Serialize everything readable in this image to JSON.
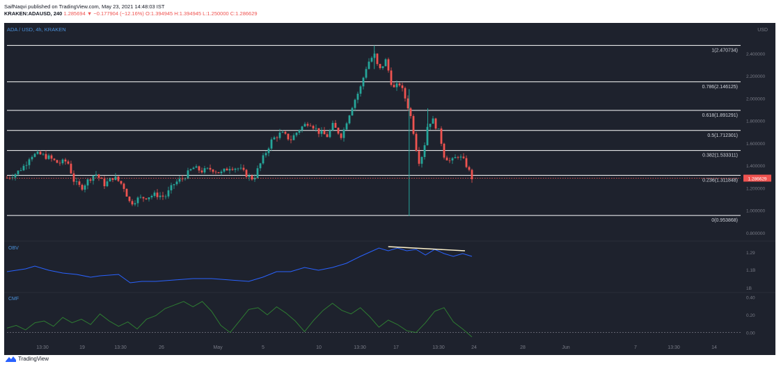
{
  "header": {
    "line1": "SaifNaqvi published on TradingView.com, May 23, 2021 14:48:03 IST",
    "symbol": "KRAKEN:ADAUSD, 240",
    "last": "1.285694",
    "change": "▼ −0.177904 (−12.16%)",
    "ohlc": "O:1.394945 H:1.394945 L:1.250000 C:1.286629"
  },
  "footer": {
    "brand": "TradingView"
  },
  "colors": {
    "bg": "#1e222d",
    "up": "#26a69a",
    "down": "#ef5350",
    "obv": "#2962ff",
    "cmf": "#2e7d32",
    "fib": "#ffffff"
  },
  "chart_data": {
    "type": "candlestick",
    "title": "ADA / USD, 4h, KRAKEN",
    "currency": "USD",
    "price_axis": {
      "ylim": [
        0.75,
        2.56
      ],
      "ticks": [
        "2.400000",
        "2.200000",
        "2.000000",
        "1.800000",
        "1.600000",
        "1.400000",
        "1.200000",
        "1.000000",
        "0.800000"
      ]
    },
    "last_price_label": "1.286629",
    "fib_levels": [
      {
        "ratio": 1,
        "price": 2.470734,
        "label": "1(2.470734)"
      },
      {
        "ratio": 0.786,
        "price": 2.146125,
        "label": "0.786(2.146125)"
      },
      {
        "ratio": 0.618,
        "price": 1.891291,
        "label": "0.618(1.891291)"
      },
      {
        "ratio": 0.5,
        "price": 1.712301,
        "label": "0.5(1.712301)"
      },
      {
        "ratio": 0.382,
        "price": 1.533311,
        "label": "0.382(1.533311)"
      },
      {
        "ratio": 0.236,
        "price": 1.311848,
        "label": "0.236(1.311848)"
      },
      {
        "ratio": 0,
        "price": 0.953868,
        "label": "0(0.953868)"
      }
    ],
    "x_ticks": [
      "13:30",
      "19",
      "13:30",
      "26",
      "May",
      "5",
      "10",
      "13:30",
      "17",
      "13:30",
      "24",
      "28",
      "Jun",
      "7",
      "13:30",
      "14"
    ],
    "price_path": [
      [
        0,
        1.29
      ],
      [
        0.02,
        1.33
      ],
      [
        0.04,
        1.41
      ],
      [
        0.05,
        1.49
      ],
      [
        0.07,
        1.5
      ],
      [
        0.09,
        1.47
      ],
      [
        0.11,
        1.42
      ],
      [
        0.13,
        1.44
      ],
      [
        0.145,
        1.25
      ],
      [
        0.16,
        1.2
      ],
      [
        0.175,
        1.27
      ],
      [
        0.19,
        1.33
      ],
      [
        0.21,
        1.23
      ],
      [
        0.23,
        1.3
      ],
      [
        0.25,
        1.22
      ],
      [
        0.265,
        1.06
      ],
      [
        0.28,
        1.1
      ],
      [
        0.3,
        1.12
      ],
      [
        0.32,
        1.14
      ],
      [
        0.34,
        1.12
      ],
      [
        0.36,
        1.24
      ],
      [
        0.38,
        1.29
      ],
      [
        0.4,
        1.38
      ],
      [
        0.42,
        1.35
      ],
      [
        0.44,
        1.37
      ],
      [
        0.46,
        1.33
      ],
      [
        0.48,
        1.39
      ],
      [
        0.5,
        1.37
      ],
      [
        0.52,
        1.3
      ],
      [
        0.53,
        1.28
      ],
      [
        0.55,
        1.46
      ],
      [
        0.57,
        1.63
      ],
      [
        0.59,
        1.69
      ],
      [
        0.61,
        1.63
      ],
      [
        0.63,
        1.73
      ],
      [
        0.65,
        1.79
      ],
      [
        0.67,
        1.7
      ],
      [
        0.69,
        1.66
      ],
      [
        0.7,
        1.76
      ],
      [
        0.72,
        1.66
      ],
      [
        0.73,
        1.79
      ],
      [
        0.745,
        1.96
      ],
      [
        0.76,
        2.09
      ],
      [
        0.775,
        2.31
      ],
      [
        0.79,
        2.39
      ],
      [
        0.8,
        2.24
      ],
      [
        0.815,
        2.34
      ],
      [
        0.83,
        2.08
      ],
      [
        0.845,
        2.13
      ],
      [
        0.86,
        1.96
      ],
      [
        0.87,
        1.81
      ],
      [
        0.885,
        1.43
      ],
      [
        0.895,
        1.51
      ],
      [
        0.905,
        1.77
      ],
      [
        0.915,
        1.81
      ],
      [
        0.93,
        1.69
      ],
      [
        0.94,
        1.49
      ],
      [
        0.955,
        1.43
      ],
      [
        0.97,
        1.49
      ],
      [
        0.985,
        1.43
      ],
      [
        1.0,
        1.29
      ]
    ],
    "wicks": [
      {
        "x": 0.79,
        "high": 2.47,
        "low": 2.26
      },
      {
        "x": 0.865,
        "high": 2.08,
        "low": 0.95
      },
      {
        "x": 0.905,
        "high": 1.91,
        "low": 1.66
      }
    ],
    "obv": {
      "label": "OBV",
      "ticks": [
        "1.29",
        "1.1B",
        "1B"
      ],
      "trendline": {
        "from": [
          0.82,
          1.32
        ],
        "to": [
          0.985,
          1.29
        ]
      },
      "values": [
        [
          0,
          1.14
        ],
        [
          0.04,
          1.16
        ],
        [
          0.06,
          1.18
        ],
        [
          0.09,
          1.15
        ],
        [
          0.12,
          1.13
        ],
        [
          0.15,
          1.12
        ],
        [
          0.18,
          1.1
        ],
        [
          0.2,
          1.11
        ],
        [
          0.24,
          1.12
        ],
        [
          0.265,
          1.06
        ],
        [
          0.29,
          1.07
        ],
        [
          0.32,
          1.07
        ],
        [
          0.36,
          1.08
        ],
        [
          0.4,
          1.09
        ],
        [
          0.44,
          1.09
        ],
        [
          0.48,
          1.08
        ],
        [
          0.52,
          1.07
        ],
        [
          0.55,
          1.1
        ],
        [
          0.58,
          1.14
        ],
        [
          0.61,
          1.14
        ],
        [
          0.64,
          1.17
        ],
        [
          0.67,
          1.15
        ],
        [
          0.7,
          1.17
        ],
        [
          0.73,
          1.2
        ],
        [
          0.76,
          1.25
        ],
        [
          0.78,
          1.28
        ],
        [
          0.8,
          1.31
        ],
        [
          0.82,
          1.29
        ],
        [
          0.84,
          1.31
        ],
        [
          0.86,
          1.29
        ],
        [
          0.88,
          1.3
        ],
        [
          0.9,
          1.26
        ],
        [
          0.92,
          1.3
        ],
        [
          0.94,
          1.27
        ],
        [
          0.96,
          1.25
        ],
        [
          0.98,
          1.27
        ],
        [
          1.0,
          1.25
        ]
      ]
    },
    "cmf": {
      "label": "CMF",
      "ticks": [
        "0.40",
        "0.20",
        "0.00"
      ],
      "values": [
        [
          0,
          0.05
        ],
        [
          0.02,
          0.08
        ],
        [
          0.04,
          0.03
        ],
        [
          0.06,
          0.11
        ],
        [
          0.08,
          0.13
        ],
        [
          0.1,
          0.07
        ],
        [
          0.12,
          0.17
        ],
        [
          0.14,
          0.11
        ],
        [
          0.16,
          0.15
        ],
        [
          0.18,
          0.09
        ],
        [
          0.2,
          0.21
        ],
        [
          0.22,
          0.13
        ],
        [
          0.24,
          0.07
        ],
        [
          0.26,
          0.12
        ],
        [
          0.28,
          0.04
        ],
        [
          0.3,
          0.15
        ],
        [
          0.32,
          0.19
        ],
        [
          0.34,
          0.27
        ],
        [
          0.36,
          0.31
        ],
        [
          0.38,
          0.35
        ],
        [
          0.4,
          0.29
        ],
        [
          0.42,
          0.35
        ],
        [
          0.44,
          0.24
        ],
        [
          0.46,
          0.08
        ],
        [
          0.48,
          0.0
        ],
        [
          0.5,
          0.13
        ],
        [
          0.52,
          0.26
        ],
        [
          0.54,
          0.28
        ],
        [
          0.56,
          0.2
        ],
        [
          0.58,
          0.29
        ],
        [
          0.6,
          0.22
        ],
        [
          0.62,
          0.13
        ],
        [
          0.64,
          0.01
        ],
        [
          0.66,
          0.14
        ],
        [
          0.68,
          0.25
        ],
        [
          0.7,
          0.33
        ],
        [
          0.72,
          0.25
        ],
        [
          0.74,
          0.21
        ],
        [
          0.76,
          0.28
        ],
        [
          0.78,
          0.18
        ],
        [
          0.8,
          0.06
        ],
        [
          0.82,
          0.14
        ],
        [
          0.84,
          0.09
        ],
        [
          0.86,
          0.02
        ],
        [
          0.88,
          0.0
        ],
        [
          0.9,
          0.11
        ],
        [
          0.92,
          0.24
        ],
        [
          0.94,
          0.28
        ],
        [
          0.96,
          0.12
        ],
        [
          0.98,
          0.04
        ],
        [
          1.0,
          -0.05
        ]
      ]
    }
  }
}
